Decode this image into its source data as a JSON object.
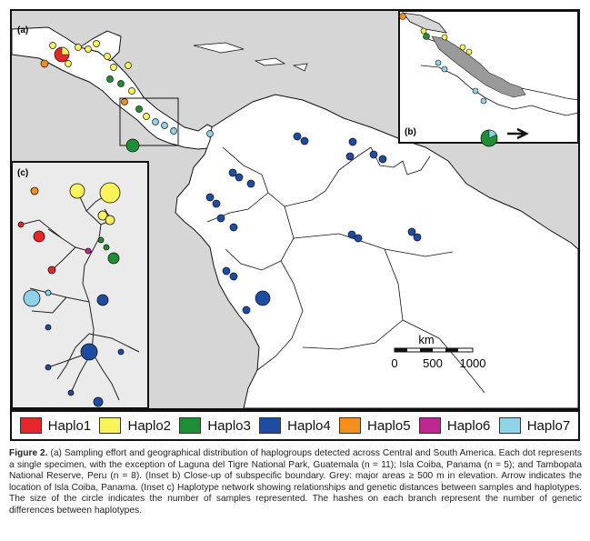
{
  "panels": {
    "a": "(a)",
    "b": "(b)",
    "c": "(c)"
  },
  "scale_bar": {
    "unit": "km",
    "ticks": [
      "0",
      "500",
      "1000"
    ]
  },
  "legend": [
    {
      "label": "Haplo1",
      "color": "#e8262a"
    },
    {
      "label": "Haplo2",
      "color": "#fbf35a"
    },
    {
      "label": "Haplo3",
      "color": "#1e8f35"
    },
    {
      "label": "Haplo4",
      "color": "#1f4ca3"
    },
    {
      "label": "Haplo5",
      "color": "#f5901e"
    },
    {
      "label": "Haplo6",
      "color": "#c0268f"
    },
    {
      "label": "Haplo7",
      "color": "#8fd3e8"
    }
  ],
  "caption": {
    "label": "Figure 2.",
    "text": " (a) Sampling effort and geographical distribution of haplogroups detected across Central and South America. Each dot represents a single specimen, with the exception of Laguna del Tigre National Park, Guatemala (n = 11); Isla Coiba, Panama (n = 5); and Tambopata National Reserve, Peru (n = 8). (Inset b) Close-up of subspecific boundary. Grey: major areas ≥ 500 m in elevation. Arrow indicates the location of Isla Coiba, Panama. (Inset c) Haplotype network showing relationships and genetic distances between samples and haplotypes. The size of the circle indicates the number of samples represented. The hashes on each branch represent the number of genetic differences between haplotypes."
  }
}
